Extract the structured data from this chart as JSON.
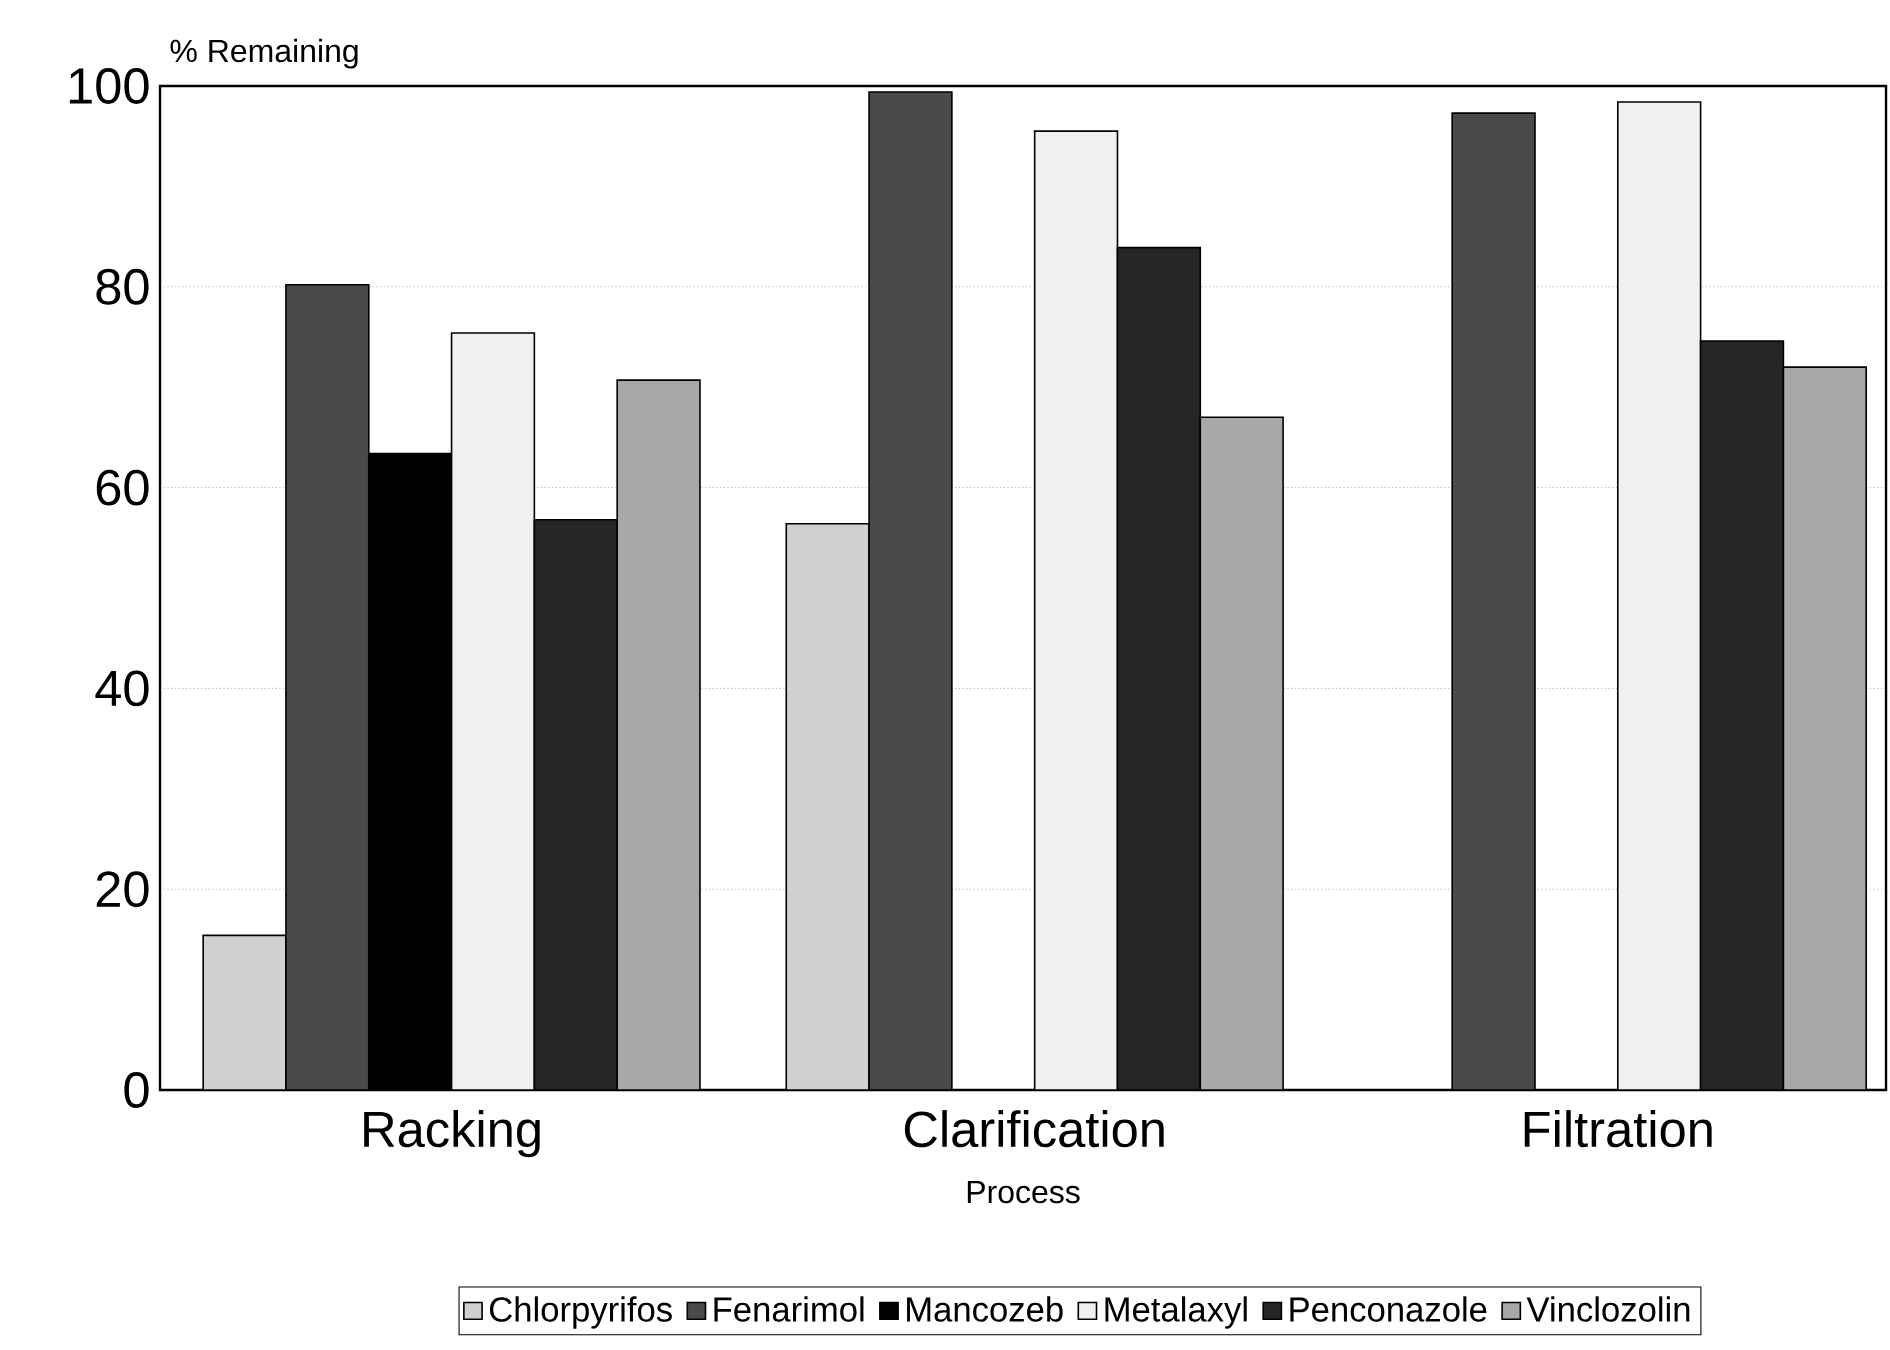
{
  "chart_data": {
    "type": "bar",
    "xlabel": "Process",
    "ylabel": "% Remaining",
    "categories": [
      "Racking",
      "Clarification",
      "Filtration"
    ],
    "series": [
      {
        "name": "Chlorpyrifos",
        "color": "#d0d0d0",
        "values": [
          15.4,
          56.4,
          null
        ]
      },
      {
        "name": "Fenarimol",
        "color": "#4a4a4a",
        "values": [
          80.2,
          99.4,
          97.3
        ]
      },
      {
        "name": "Mancozeb",
        "color": "#000000",
        "values": [
          63.4,
          null,
          null
        ]
      },
      {
        "name": "Metalaxyl",
        "color": "#f0f0f0",
        "values": [
          75.4,
          95.5,
          98.4
        ]
      },
      {
        "name": "Penconazole",
        "color": "#262626",
        "values": [
          56.8,
          83.9,
          74.6
        ]
      },
      {
        "name": "Vinclozolin",
        "color": "#a8a8a8",
        "values": [
          70.7,
          67.0,
          72.0
        ]
      }
    ],
    "ylim": [
      0,
      100
    ],
    "yticks": [
      0,
      20,
      40,
      60,
      80,
      100
    ],
    "grid": "y",
    "legend": "bottom"
  }
}
